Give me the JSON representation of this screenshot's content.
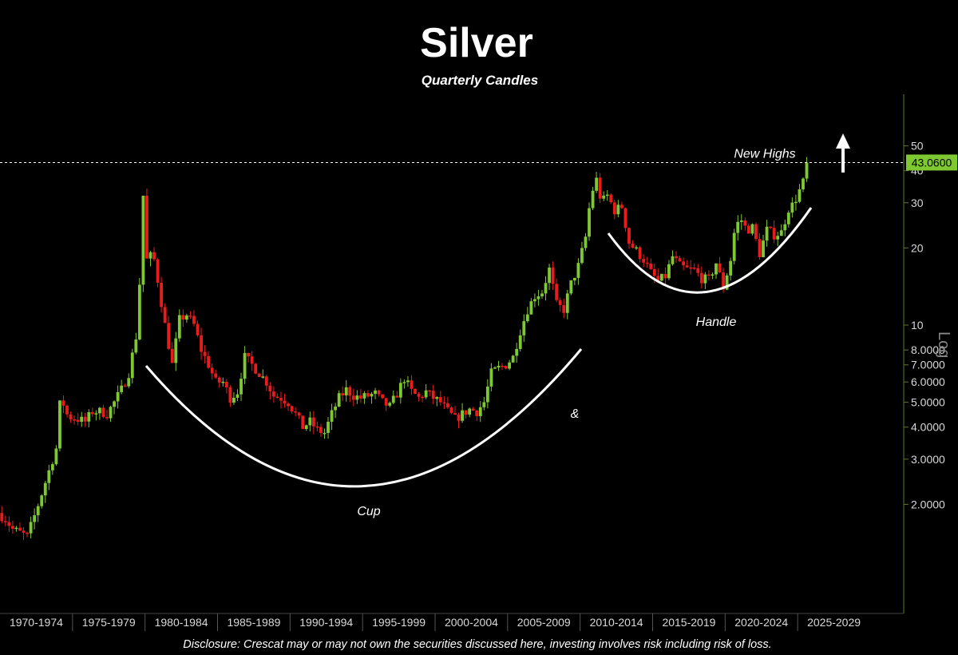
{
  "chart_data": {
    "type": "candlestick",
    "title": "Silver",
    "subtitle": "Quarterly Candles",
    "y_scale": "log",
    "scale_label": "Log",
    "ylim": [
      1.2,
      52
    ],
    "y_ticks": [
      {
        "value": 50,
        "label": "50"
      },
      {
        "value": 40,
        "label": "40"
      },
      {
        "value": 30,
        "label": "30"
      },
      {
        "value": 20,
        "label": "20"
      },
      {
        "value": 10,
        "label": "10"
      },
      {
        "value": 8,
        "label": "8.0000"
      },
      {
        "value": 7,
        "label": "7.0000"
      },
      {
        "value": 6,
        "label": "6.0000"
      },
      {
        "value": 5,
        "label": "5.0000"
      },
      {
        "value": 4,
        "label": "4.0000"
      },
      {
        "value": 3,
        "label": "3.0000"
      },
      {
        "value": 2,
        "label": "2.0000"
      }
    ],
    "x_categories": [
      "1970-1974",
      "1975-1979",
      "1980-1984",
      "1985-1989",
      "1990-1994",
      "1995-1999",
      "2000-2004",
      "2005-2009",
      "2010-2014",
      "2015-2019",
      "2020-2024",
      "2025-2029"
    ],
    "xlim": [
      1970,
      2030
    ],
    "last_price": 43.06,
    "last_price_label": "43.0600",
    "reference_line": {
      "value": 43.06,
      "label": "New Highs"
    },
    "colors": {
      "up": "#7ec832",
      "down": "#e81c1c",
      "badge": "#7ec832",
      "background": "#000000"
    },
    "annotations": {
      "cup": "Cup",
      "amp": "&",
      "handle": "Handle"
    },
    "price_path": [
      [
        1970.0,
        1.85
      ],
      [
        1970.5,
        1.75
      ],
      [
        1971.0,
        1.6
      ],
      [
        1971.5,
        1.55
      ],
      [
        1972.0,
        1.5
      ],
      [
        1972.5,
        1.8
      ],
      [
        1973.0,
        2.2
      ],
      [
        1973.5,
        2.7
      ],
      [
        1974.0,
        3.3
      ],
      [
        1974.3,
        5.3
      ],
      [
        1974.8,
        4.4
      ],
      [
        1975.5,
        4.3
      ],
      [
        1976.0,
        4.2
      ],
      [
        1976.5,
        4.6
      ],
      [
        1977.0,
        4.6
      ],
      [
        1977.5,
        4.5
      ],
      [
        1978.0,
        5.0
      ],
      [
        1978.5,
        5.6
      ],
      [
        1979.0,
        6.5
      ],
      [
        1979.5,
        9.0
      ],
      [
        1979.8,
        16.0
      ],
      [
        1980.0,
        32.0
      ],
      [
        1980.3,
        16.0
      ],
      [
        1980.6,
        20.0
      ],
      [
        1981.0,
        15.0
      ],
      [
        1981.5,
        10.0
      ],
      [
        1982.0,
        7.0
      ],
      [
        1982.5,
        10.5
      ],
      [
        1983.0,
        11.0
      ],
      [
        1983.5,
        10.0
      ],
      [
        1984.0,
        8.0
      ],
      [
        1984.5,
        7.0
      ],
      [
        1985.0,
        6.0
      ],
      [
        1985.5,
        6.0
      ],
      [
        1986.0,
        5.2
      ],
      [
        1986.5,
        5.5
      ],
      [
        1987.0,
        7.5
      ],
      [
        1987.5,
        7.0
      ],
      [
        1988.0,
        6.5
      ],
      [
        1988.5,
        6.0
      ],
      [
        1989.0,
        5.3
      ],
      [
        1989.5,
        5.2
      ],
      [
        1990.0,
        5.0
      ],
      [
        1990.5,
        4.5
      ],
      [
        1991.0,
        4.0
      ],
      [
        1991.5,
        4.2
      ],
      [
        1992.0,
        3.9
      ],
      [
        1992.5,
        3.8
      ],
      [
        1993.0,
        4.5
      ],
      [
        1993.5,
        5.2
      ],
      [
        1994.0,
        5.6
      ],
      [
        1994.5,
        5.3
      ],
      [
        1995.0,
        5.2
      ],
      [
        1995.5,
        5.3
      ],
      [
        1996.0,
        5.4
      ],
      [
        1996.5,
        5.0
      ],
      [
        1997.0,
        4.8
      ],
      [
        1997.5,
        5.4
      ],
      [
        1998.0,
        6.2
      ],
      [
        1998.5,
        5.5
      ],
      [
        1999.0,
        5.2
      ],
      [
        1999.5,
        5.5
      ],
      [
        2000.0,
        5.2
      ],
      [
        2000.5,
        5.0
      ],
      [
        2001.0,
        4.6
      ],
      [
        2001.5,
        4.3
      ],
      [
        2002.0,
        4.5
      ],
      [
        2002.5,
        4.7
      ],
      [
        2003.0,
        4.6
      ],
      [
        2003.5,
        5.0
      ],
      [
        2004.0,
        6.5
      ],
      [
        2004.5,
        6.8
      ],
      [
        2005.0,
        7.0
      ],
      [
        2005.5,
        7.5
      ],
      [
        2006.0,
        9.5
      ],
      [
        2006.5,
        11.5
      ],
      [
        2007.0,
        13.0
      ],
      [
        2007.5,
        13.5
      ],
      [
        2008.0,
        16.5
      ],
      [
        2008.5,
        12.0
      ],
      [
        2009.0,
        11.5
      ],
      [
        2009.5,
        14.5
      ],
      [
        2010.0,
        17.0
      ],
      [
        2010.5,
        22.0
      ],
      [
        2010.8,
        30.0
      ],
      [
        2011.2,
        38.0
      ],
      [
        2011.6,
        30.0
      ],
      [
        2012.0,
        32.0
      ],
      [
        2012.5,
        28.0
      ],
      [
        2013.0,
        29.0
      ],
      [
        2013.5,
        21.0
      ],
      [
        2014.0,
        19.5
      ],
      [
        2014.5,
        18.0
      ],
      [
        2015.0,
        16.0
      ],
      [
        2015.5,
        14.8
      ],
      [
        2016.0,
        15.5
      ],
      [
        2016.5,
        18.5
      ],
      [
        2017.0,
        17.0
      ],
      [
        2017.5,
        16.5
      ],
      [
        2018.0,
        16.4
      ],
      [
        2018.5,
        15.2
      ],
      [
        2019.0,
        15.0
      ],
      [
        2019.5,
        17.5
      ],
      [
        2020.0,
        14.0
      ],
      [
        2020.5,
        18.0
      ],
      [
        2020.8,
        24.0
      ],
      [
        2021.2,
        26.0
      ],
      [
        2021.6,
        23.5
      ],
      [
        2022.0,
        24.0
      ],
      [
        2022.5,
        19.0
      ],
      [
        2023.0,
        23.5
      ],
      [
        2023.5,
        22.5
      ],
      [
        2024.0,
        23.0
      ],
      [
        2024.5,
        28.5
      ],
      [
        2024.8,
        29.5
      ],
      [
        2025.2,
        33.0
      ],
      [
        2025.5,
        36.0
      ],
      [
        2025.75,
        43.06
      ]
    ],
    "disclosure": "Disclosure: Crescat may or may not own the securities discussed here, investing involves risk including risk of loss."
  }
}
